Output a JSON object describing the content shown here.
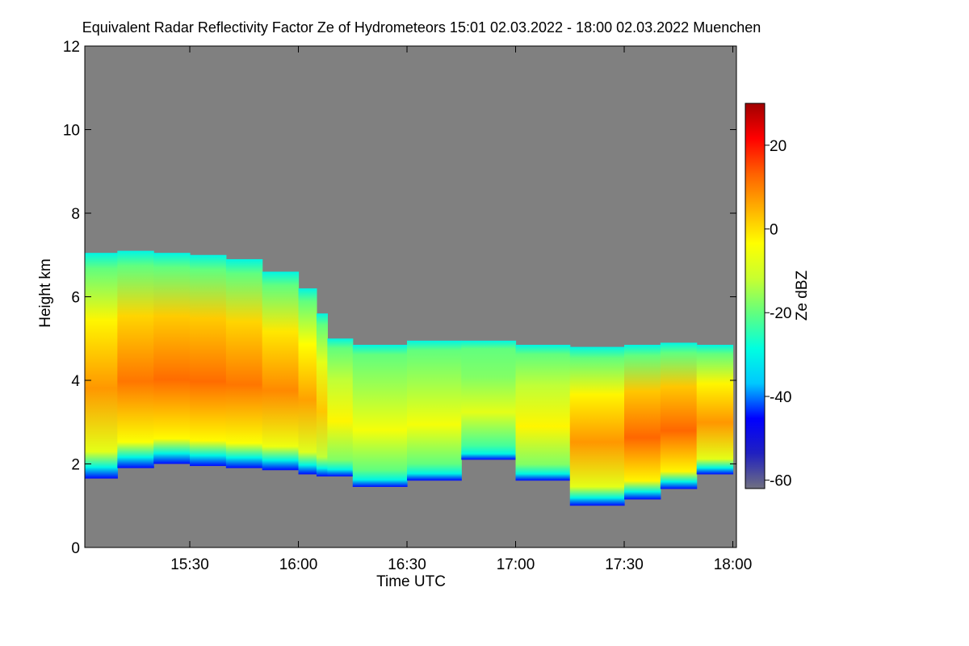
{
  "chart_data": {
    "type": "heatmap",
    "title": "Equivalent Radar Reflectivity Factor Ze of Hydrometeors   15:01 02.03.2022 - 18:00 02.03.2022 Muenchen",
    "xlabel": "Time UTC",
    "ylabel": "Height km",
    "x_range": [
      "15:01",
      "18:01"
    ],
    "x_ticks": [
      {
        "label": "15:30",
        "value": "15:30"
      },
      {
        "label": "16:00",
        "value": "16:00"
      },
      {
        "label": "16:30",
        "value": "16:30"
      },
      {
        "label": "17:00",
        "value": "17:00"
      },
      {
        "label": "17:30",
        "value": "17:30"
      },
      {
        "label": "18:00",
        "value": "18:00"
      }
    ],
    "ylim": [
      0,
      12
    ],
    "y_ticks": [
      0,
      2,
      4,
      6,
      8,
      10,
      12
    ],
    "colorbar": {
      "label": "Ze dBZ",
      "range": [
        -62,
        30
      ],
      "ticks": [
        20,
        0,
        -20,
        -40,
        -60
      ],
      "colormap": [
        "#707080",
        "#2020c0",
        "#0000ff",
        "#00c8ff",
        "#00ffe0",
        "#60ff80",
        "#c8ff30",
        "#ffff00",
        "#ffb000",
        "#ff6000",
        "#ff0000",
        "#a00000"
      ]
    },
    "background_color": "#808080",
    "echo_profile": {
      "time": [
        "15:01",
        "15:10",
        "15:20",
        "15:30",
        "15:40",
        "15:50",
        "16:00",
        "16:05",
        "16:08",
        "16:15",
        "16:30",
        "16:45",
        "17:00",
        "17:15",
        "17:30",
        "17:40",
        "17:50",
        "18:00"
      ],
      "top_km": [
        7.0,
        7.1,
        7.1,
        7.0,
        7.0,
        6.8,
        6.4,
        6.0,
        5.2,
        4.8,
        4.9,
        5.0,
        4.9,
        4.8,
        4.8,
        4.9,
        4.9,
        4.8
      ],
      "base_km": [
        1.5,
        1.8,
        2.0,
        2.0,
        1.9,
        1.9,
        1.8,
        1.7,
        1.7,
        1.7,
        1.2,
        2.0,
        2.2,
        1.0,
        1.0,
        1.3,
        1.5,
        2.0
      ],
      "peak_ze_dbz": [
        5,
        10,
        12,
        12,
        12,
        10,
        8,
        5,
        0,
        -5,
        -5,
        -5,
        -10,
        5,
        10,
        15,
        10,
        5
      ]
    }
  }
}
